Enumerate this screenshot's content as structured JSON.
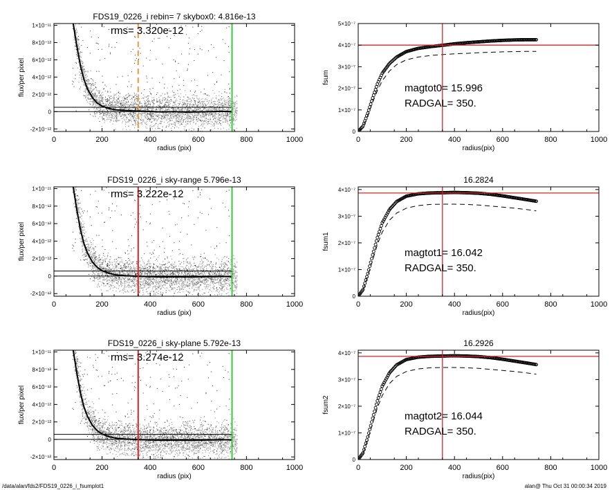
{
  "footer": {
    "left": "/data/alan/fds2/FDS19_0226_i_fsumplot1",
    "right": "alan@  Thu Oct 31 00:00:34 2019"
  },
  "colors": {
    "scatter_gray": "#9e9e9e",
    "scatter_black": "#222222",
    "profile": "#000000",
    "green_line": "#33cc33",
    "red_line": "#dd2222",
    "orange_line": "#ee9933"
  },
  "chart_data": [
    {
      "id": "flux1",
      "type": "scatter",
      "title": "FDS19_0226_i rebin= 7    skybox0:  4.816e-13",
      "annotation": "rms= 3.320e-12",
      "xlabel": "radius (pix)",
      "ylabel": "flux/per pixel",
      "xlim": [
        0,
        1000
      ],
      "ylim": [
        -2.3e-12,
        1.02e-11
      ],
      "xticks": [
        0,
        200,
        400,
        600,
        800,
        1000
      ],
      "xticklabels": [
        "0",
        "200",
        "400",
        "600",
        "800",
        "1000"
      ],
      "yticks": [
        -2e-12,
        0,
        2e-12,
        4e-12,
        6e-12,
        8e-12,
        1e-11
      ],
      "yticklabels": [
        "-2×10⁻¹²",
        "0",
        "2×10⁻¹²",
        "4×10⁻¹²",
        "6×10⁻¹²",
        "8×10⁻¹²",
        "1×10⁻¹¹"
      ],
      "profile": {
        "x": [
          80,
          95,
          110,
          125,
          140,
          160,
          180,
          200,
          230,
          260,
          300,
          350,
          400,
          450,
          500,
          550,
          600,
          650,
          700,
          740
        ],
        "y": [
          1.02e-11,
          7.6e-12,
          5.3e-12,
          3.7e-12,
          2.6e-12,
          1.6e-12,
          1e-12,
          6.5e-13,
          3.5e-13,
          2e-13,
          1.2e-13,
          6e-14,
          2e-14,
          -4e-14,
          0,
          -6e-14,
          -4e-14,
          0,
          3e-14,
          0
        ]
      },
      "hlines": [
        5e-13,
        0
      ],
      "hline_xmax": 740,
      "vlines": [
        {
          "x": 350,
          "color": "orange",
          "style": "dashed"
        },
        {
          "x": 740,
          "color": "green",
          "style": "solid"
        }
      ]
    },
    {
      "id": "fsum0",
      "type": "line",
      "title": "",
      "annotation": [
        "magtot0=  15.996",
        "RADGAL=    350."
      ],
      "xlabel": "radius(pix)",
      "ylabel": "fsum",
      "xlim": [
        0,
        1000
      ],
      "ylim": [
        0,
        5e-07
      ],
      "xticks": [
        0,
        200,
        400,
        600,
        800,
        1000
      ],
      "xticklabels": [
        "0",
        "200",
        "400",
        "600",
        "800",
        "1000"
      ],
      "yticks": [
        0,
        1e-07,
        2e-07,
        3e-07,
        4e-07,
        5e-07
      ],
      "yticklabels": [
        "0",
        "1×10⁻⁷",
        "2×10⁻⁷",
        "3×10⁻⁷",
        "4×10⁻⁷",
        "5×10⁻⁷"
      ],
      "series": [
        {
          "style": "circles",
          "x": [
            0,
            20,
            40,
            60,
            80,
            100,
            130,
            160,
            200,
            250,
            300,
            350,
            400,
            450,
            500,
            550,
            600,
            650,
            700,
            740
          ],
          "y": [
            0,
            2.5e-08,
            8.5e-08,
            1.55e-07,
            2.2e-07,
            2.7e-07,
            3.15e-07,
            3.45e-07,
            3.7e-07,
            3.85e-07,
            3.93e-07,
            3.99e-07,
            4.06e-07,
            4.11e-07,
            4.15e-07,
            4.19e-07,
            4.22e-07,
            4.24e-07,
            4.25e-07,
            4.25e-07
          ]
        },
        {
          "style": "dashed",
          "x": [
            0,
            20,
            40,
            60,
            80,
            100,
            130,
            160,
            200,
            250,
            300,
            350,
            400,
            450,
            500,
            550,
            600,
            650,
            700,
            740
          ],
          "y": [
            0,
            2.2e-08,
            7.5e-08,
            1.35e-07,
            1.9e-07,
            2.35e-07,
            2.8e-07,
            3.1e-07,
            3.32e-07,
            3.45e-07,
            3.52e-07,
            3.56e-07,
            3.6e-07,
            3.62e-07,
            3.65e-07,
            3.67e-07,
            3.69e-07,
            3.7e-07,
            3.71e-07,
            3.71e-07
          ]
        }
      ],
      "hline": 4e-07,
      "vline": 350
    },
    {
      "id": "flux2",
      "type": "scatter",
      "title": "FDS19_0226_i sky-range  5.796e-13",
      "annotation": "rms= 3.222e-12",
      "xlabel": "radius (pix)",
      "ylabel": "flux/per pixel",
      "xlim": [
        0,
        1000
      ],
      "ylim": [
        -2.3e-12,
        1.02e-11
      ],
      "xticks": [
        0,
        200,
        400,
        600,
        800,
        1000
      ],
      "xticklabels": [
        "0",
        "200",
        "400",
        "600",
        "800",
        "1000"
      ],
      "yticks": [
        -2e-12,
        0,
        2e-12,
        4e-12,
        6e-12,
        8e-12,
        1e-11
      ],
      "yticklabels": [
        "-2×10⁻¹²",
        "0",
        "2×10⁻¹²",
        "4×10⁻¹²",
        "6×10⁻¹²",
        "8×10⁻¹²",
        "1×10⁻¹¹"
      ],
      "profile": {
        "x": [
          80,
          95,
          110,
          125,
          140,
          160,
          180,
          200,
          230,
          260,
          300,
          350,
          400,
          450,
          500,
          550,
          600,
          650,
          700,
          740
        ],
        "y": [
          1.02e-11,
          7.6e-12,
          5.3e-12,
          3.7e-12,
          2.6e-12,
          1.6e-12,
          1e-12,
          6.2e-13,
          3e-13,
          1.3e-13,
          4e-14,
          -2e-14,
          -6e-14,
          -1e-13,
          -8e-14,
          -1.1e-13,
          -9e-14,
          -6e-14,
          -4e-14,
          -6e-14
        ]
      },
      "hlines": [
        5.8e-13,
        0
      ],
      "hline_xmax": 740,
      "vlines": [
        {
          "x": 350,
          "color": "red",
          "style": "solid"
        },
        {
          "x": 740,
          "color": "green",
          "style": "solid"
        }
      ]
    },
    {
      "id": "fsum1",
      "type": "line",
      "title": "16.2824",
      "annotation": [
        "magtot1=  16.042",
        "RADGAL=    350."
      ],
      "xlabel": "radius(pix)",
      "ylabel": "fsum1",
      "xlim": [
        0,
        1000
      ],
      "ylim": [
        0,
        4.1e-07
      ],
      "xticks": [
        0,
        200,
        400,
        600,
        800,
        1000
      ],
      "xticklabels": [
        "0",
        "200",
        "400",
        "600",
        "800",
        "1000"
      ],
      "yticks": [
        0,
        1e-07,
        2e-07,
        3e-07,
        4e-07
      ],
      "yticklabels": [
        "0",
        "1×10⁻⁷",
        "2×10⁻⁷",
        "3×10⁻⁷",
        "4×10⁻⁷"
      ],
      "series": [
        {
          "style": "circles",
          "x": [
            0,
            20,
            40,
            60,
            80,
            100,
            130,
            160,
            200,
            250,
            300,
            350,
            400,
            450,
            500,
            550,
            600,
            650,
            700,
            740
          ],
          "y": [
            0,
            2.5e-08,
            8.5e-08,
            1.55e-07,
            2.2e-07,
            2.75e-07,
            3.25e-07,
            3.55e-07,
            3.75e-07,
            3.84e-07,
            3.87e-07,
            3.88e-07,
            3.89e-07,
            3.88e-07,
            3.86e-07,
            3.82e-07,
            3.76e-07,
            3.69e-07,
            3.62e-07,
            3.56e-07
          ]
        },
        {
          "style": "dashed",
          "x": [
            0,
            20,
            40,
            60,
            80,
            100,
            130,
            160,
            200,
            250,
            300,
            350,
            400,
            450,
            500,
            550,
            600,
            650,
            700,
            740
          ],
          "y": [
            0,
            2.2e-08,
            7.5e-08,
            1.35e-07,
            1.95e-07,
            2.4e-07,
            2.85e-07,
            3.12e-07,
            3.3e-07,
            3.4e-07,
            3.44e-07,
            3.45e-07,
            3.45e-07,
            3.44e-07,
            3.42e-07,
            3.38e-07,
            3.34e-07,
            3.3e-07,
            3.25e-07,
            3.2e-07
          ]
        }
      ],
      "hline": 3.87e-07,
      "vline": 350
    },
    {
      "id": "flux3",
      "type": "scatter",
      "title": "FDS19_0226_i sky-plane  5.792e-13",
      "annotation": "rms= 3.274e-12",
      "xlabel": "radius (pix)",
      "ylabel": "flux/per pixel",
      "xlim": [
        0,
        1000
      ],
      "ylim": [
        -2.3e-12,
        1.02e-11
      ],
      "xticks": [
        0,
        200,
        400,
        600,
        800,
        1000
      ],
      "xticklabels": [
        "0",
        "200",
        "400",
        "600",
        "800",
        "1000"
      ],
      "yticks": [
        -2e-12,
        0,
        2e-12,
        4e-12,
        6e-12,
        8e-12,
        1e-11
      ],
      "yticklabels": [
        "-2×10⁻¹²",
        "0",
        "2×10⁻¹²",
        "4×10⁻¹²",
        "6×10⁻¹²",
        "8×10⁻¹²",
        "1×10⁻¹¹"
      ],
      "profile": {
        "x": [
          80,
          95,
          110,
          125,
          140,
          160,
          180,
          200,
          230,
          260,
          300,
          350,
          400,
          450,
          500,
          550,
          600,
          650,
          700,
          740
        ],
        "y": [
          1.02e-11,
          7.6e-12,
          5.3e-12,
          3.7e-12,
          2.6e-12,
          1.6e-12,
          1e-12,
          6.2e-13,
          3e-13,
          1.3e-13,
          4e-14,
          -2e-14,
          -6e-14,
          -1e-13,
          -8e-14,
          -1.1e-13,
          -9e-14,
          -6e-14,
          -4e-14,
          -6e-14
        ]
      },
      "hlines": [
        5.8e-13,
        0
      ],
      "hline_xmax": 740,
      "vlines": [
        {
          "x": 350,
          "color": "red",
          "style": "solid"
        },
        {
          "x": 740,
          "color": "green",
          "style": "solid"
        }
      ]
    },
    {
      "id": "fsum2",
      "type": "line",
      "title": "16.2926",
      "annotation": [
        "magtot2=  16.044",
        "RADGAL=    350."
      ],
      "xlabel": "radius(pix)",
      "ylabel": "fsum2",
      "xlim": [
        0,
        1000
      ],
      "ylim": [
        0,
        4.1e-07
      ],
      "xticks": [
        0,
        200,
        400,
        600,
        800,
        1000
      ],
      "xticklabels": [
        "0",
        "200",
        "400",
        "600",
        "800",
        "1000"
      ],
      "yticks": [
        0,
        1e-07,
        2e-07,
        3e-07,
        4e-07
      ],
      "yticklabels": [
        "0",
        "1×10⁻⁷",
        "2×10⁻⁷",
        "3×10⁻⁷",
        "4×10⁻⁷"
      ],
      "series": [
        {
          "style": "circles",
          "x": [
            0,
            20,
            40,
            60,
            80,
            100,
            130,
            160,
            200,
            250,
            300,
            350,
            400,
            450,
            500,
            550,
            600,
            650,
            700,
            740
          ],
          "y": [
            0,
            2.5e-08,
            8.5e-08,
            1.55e-07,
            2.2e-07,
            2.75e-07,
            3.25e-07,
            3.55e-07,
            3.75e-07,
            3.84e-07,
            3.87e-07,
            3.88e-07,
            3.89e-07,
            3.88e-07,
            3.86e-07,
            3.82e-07,
            3.76e-07,
            3.69e-07,
            3.62e-07,
            3.56e-07
          ]
        },
        {
          "style": "dashed",
          "x": [
            0,
            20,
            40,
            60,
            80,
            100,
            130,
            160,
            200,
            250,
            300,
            350,
            400,
            450,
            500,
            550,
            600,
            650,
            700,
            740
          ],
          "y": [
            0,
            2.2e-08,
            7.5e-08,
            1.35e-07,
            1.95e-07,
            2.4e-07,
            2.85e-07,
            3.12e-07,
            3.3e-07,
            3.4e-07,
            3.44e-07,
            3.45e-07,
            3.45e-07,
            3.44e-07,
            3.42e-07,
            3.38e-07,
            3.34e-07,
            3.3e-07,
            3.25e-07,
            3.2e-07
          ]
        }
      ],
      "hline": 3.87e-07,
      "vline": 350
    }
  ]
}
